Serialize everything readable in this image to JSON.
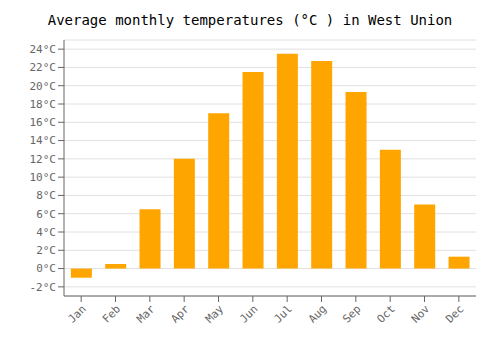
{
  "chart_data": {
    "type": "bar",
    "title": "Average monthly temperatures (°C ) in West Union",
    "categories": [
      "Jan",
      "Feb",
      "Mar",
      "Apr",
      "May",
      "Jun",
      "Jul",
      "Aug",
      "Sep",
      "Oct",
      "Nov",
      "Dec"
    ],
    "values": [
      -1.0,
      0.5,
      6.5,
      12.0,
      17.0,
      21.5,
      23.5,
      22.7,
      19.3,
      13.0,
      7.0,
      1.3
    ],
    "color": "#FFA500",
    "ylim": [
      -3,
      25
    ],
    "yticks": [
      {
        "value": -2,
        "label": "-2°C"
      },
      {
        "value": 0,
        "label": "0°C"
      },
      {
        "value": 2,
        "label": "2°C"
      },
      {
        "value": 4,
        "label": "4°C"
      },
      {
        "value": 6,
        "label": "6°C"
      },
      {
        "value": 8,
        "label": "8°C"
      },
      {
        "value": 10,
        "label": "10°C"
      },
      {
        "value": 12,
        "label": "12°C"
      },
      {
        "value": 14,
        "label": "14°C"
      },
      {
        "value": 16,
        "label": "16°C"
      },
      {
        "value": 18,
        "label": "18°C"
      },
      {
        "value": 20,
        "label": "20°C"
      },
      {
        "value": 22,
        "label": "22°C"
      },
      {
        "value": 24,
        "label": "24°C"
      }
    ],
    "grid": true
  }
}
